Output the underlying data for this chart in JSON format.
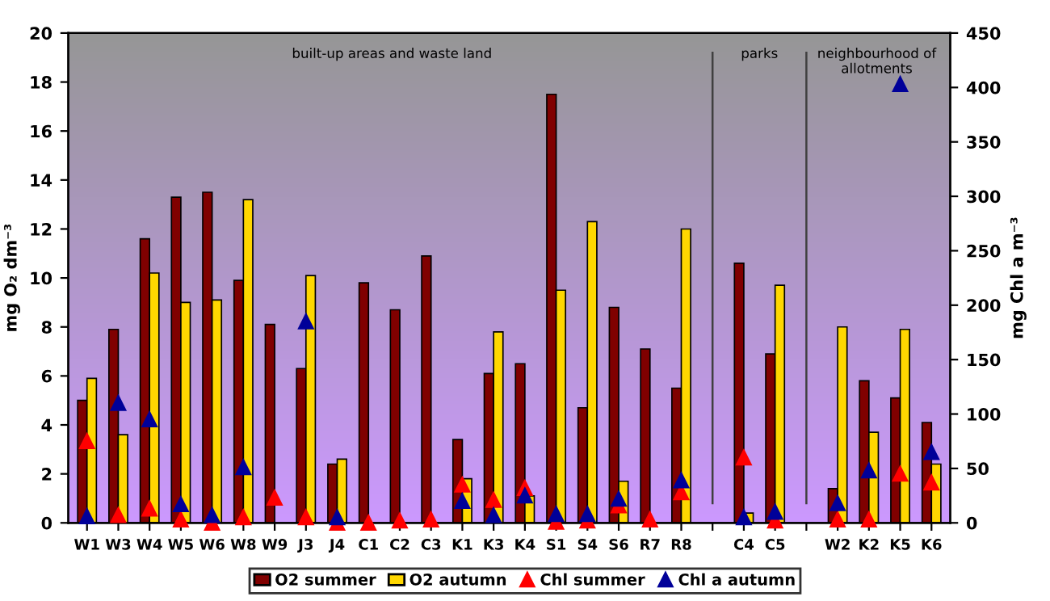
{
  "chart_data": {
    "type": "bar",
    "ylabel": "mg O₂ dm⁻³",
    "y2label": "mg Chl a m⁻³",
    "categories": [
      "W1",
      "W3",
      "W4",
      "W5",
      "W6",
      "W8",
      "W9",
      "J3",
      "J4",
      "C1",
      "C2",
      "C3",
      "K1",
      "K3",
      "K4",
      "S1",
      "S4",
      "S6",
      "R7",
      "R8",
      null,
      "C4",
      "C5",
      null,
      "W2",
      "K2",
      "K5",
      "K6"
    ],
    "series": [
      {
        "name": "O2 summer",
        "color": "#800000",
        "values": [
          5.0,
          7.9,
          11.6,
          13.3,
          13.5,
          9.9,
          8.1,
          6.3,
          2.4,
          9.8,
          8.7,
          10.9,
          3.4,
          6.1,
          6.5,
          17.5,
          4.7,
          8.8,
          7.1,
          5.5,
          null,
          10.6,
          6.9,
          null,
          1.4,
          5.8,
          5.1,
          4.1
        ]
      },
      {
        "name": "O2 autumn",
        "color": "#ffd700",
        "values": [
          5.9,
          3.6,
          10.2,
          9.0,
          9.1,
          13.2,
          null,
          10.1,
          2.6,
          null,
          null,
          null,
          1.8,
          7.8,
          1.1,
          9.5,
          12.3,
          1.7,
          null,
          12.0,
          null,
          0.4,
          9.7,
          null,
          8.0,
          3.7,
          7.9,
          2.4
        ]
      },
      {
        "name": "Chl summer",
        "type": "scatter",
        "axis": "y2",
        "marker": "triangle",
        "color": "#ff0000",
        "values": [
          75,
          7,
          13,
          3,
          0,
          5,
          23,
          5,
          0,
          0,
          2,
          3,
          35,
          21,
          32,
          1,
          2,
          16,
          3,
          28,
          null,
          60,
          2,
          null,
          3,
          3,
          45,
          37
        ]
      },
      {
        "name": "Chl a autumn",
        "type": "scatter",
        "axis": "y2",
        "marker": "triangle",
        "color": "#000099",
        "values": [
          6,
          110,
          95,
          17,
          7,
          51,
          null,
          185,
          5,
          null,
          null,
          null,
          20,
          7,
          25,
          8,
          8,
          22,
          null,
          39,
          null,
          5,
          10,
          null,
          18,
          48,
          403,
          65
        ]
      }
    ],
    "ylim": [
      0,
      20
    ],
    "yticks": [
      0,
      2,
      4,
      6,
      8,
      10,
      12,
      14,
      16,
      18,
      20
    ],
    "y2lim": [
      0,
      450
    ],
    "y2ticks": [
      0,
      50,
      100,
      150,
      200,
      250,
      300,
      350,
      400,
      450
    ],
    "annotations": [
      "built-up areas and waste land",
      "parks",
      "neighbourhood of\nallotments"
    ],
    "legend": "bottom"
  }
}
